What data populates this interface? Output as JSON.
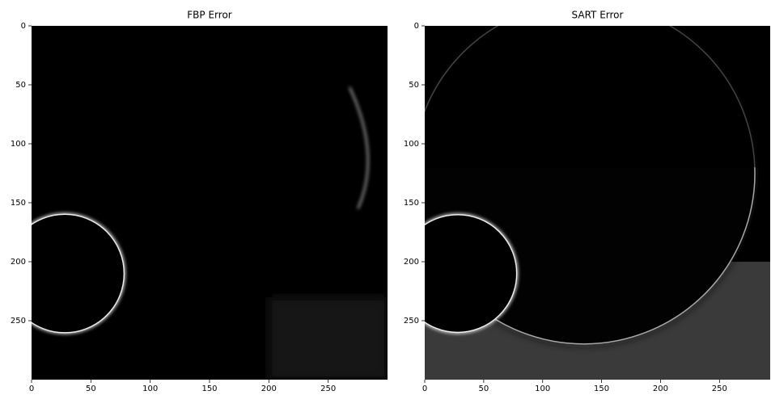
{
  "chart_data": [
    {
      "type": "image",
      "title": "FBP Error",
      "xlim": [
        0,
        300
      ],
      "ylim": [
        300,
        0
      ],
      "xticks": [
        0,
        50,
        100,
        150,
        200,
        250
      ],
      "yticks": [
        0,
        50,
        100,
        150,
        200,
        250
      ]
    },
    {
      "type": "image",
      "title": "SART Error",
      "xlim": [
        0,
        293
      ],
      "ylim": [
        300,
        0
      ],
      "xticks": [
        0,
        50,
        100,
        150,
        200,
        250
      ],
      "yticks": [
        0,
        50,
        100,
        150,
        200,
        250
      ]
    }
  ]
}
